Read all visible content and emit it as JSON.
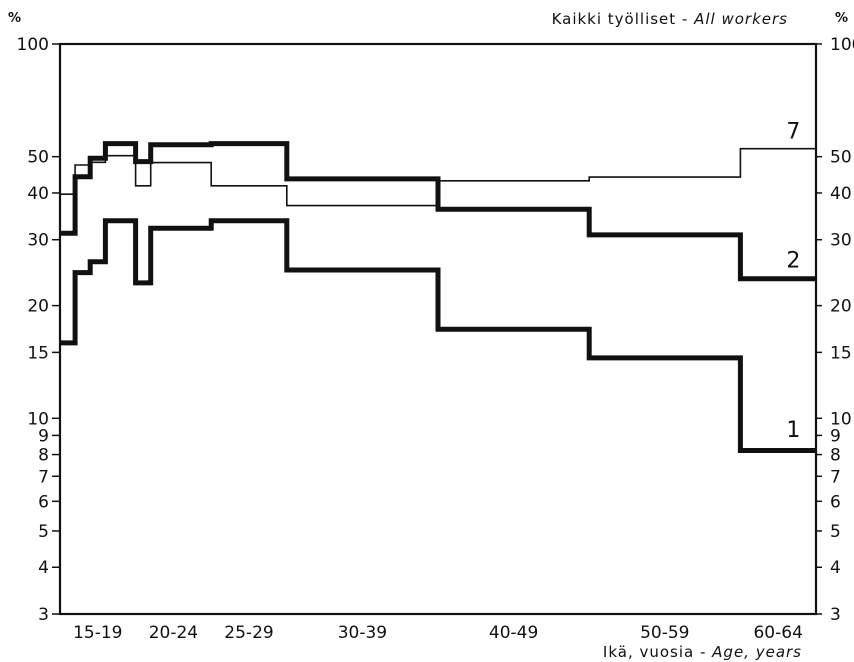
{
  "chart_data": {
    "type": "line",
    "title_prefix": "Kaikki työlliset - ",
    "title_italic": "All workers",
    "xlabel_prefix": "Ikä, vuosia - ",
    "xlabel_italic": "Age, years",
    "ylabel_left": "%",
    "ylabel_right": "%",
    "y_scale": "log",
    "ylim": [
      3,
      100
    ],
    "xlim": [
      15,
      65
    ],
    "grid": false,
    "yticks_left": [
      "3",
      "4",
      "5",
      "6",
      "7",
      "8",
      "9",
      "10",
      "15",
      "20",
      "30",
      "40",
      "50",
      "100"
    ],
    "yticks_right": [
      "3",
      "4",
      "5",
      "6",
      "7",
      "8",
      "9",
      "10",
      "15",
      "20",
      "30",
      "40",
      "50",
      "100"
    ],
    "ytick_values": [
      3,
      4,
      5,
      6,
      7,
      8,
      9,
      10,
      15,
      20,
      30,
      40,
      50,
      100
    ],
    "x_categories": [
      {
        "label": "15-19",
        "center": 17.5
      },
      {
        "label": "20-24",
        "center": 22.5
      },
      {
        "label": "25-29",
        "center": 27.5
      },
      {
        "label": "30-39",
        "center": 35
      },
      {
        "label": "40-49",
        "center": 45
      },
      {
        "label": "50-59",
        "center": 55
      },
      {
        "label": "60-64",
        "center": 62.5
      }
    ],
    "series": [
      {
        "name": "7",
        "style": "thin",
        "label_at": {
          "x": 63.5,
          "y": 56
        },
        "steps": [
          {
            "x0": 15.0,
            "x1": 16.0,
            "y": 39.7
          },
          {
            "x0": 16.0,
            "x1": 17.0,
            "y": 47.5
          },
          {
            "x0": 17.0,
            "x1": 18.0,
            "y": 48.3
          },
          {
            "x0": 18.0,
            "x1": 20.0,
            "y": 50.3
          },
          {
            "x0": 20.0,
            "x1": 21.0,
            "y": 41.8
          },
          {
            "x0": 21.0,
            "x1": 25.0,
            "y": 48.2
          },
          {
            "x0": 25.0,
            "x1": 30.0,
            "y": 41.8
          },
          {
            "x0": 30.0,
            "x1": 40.0,
            "y": 37.0
          },
          {
            "x0": 40.0,
            "x1": 50.0,
            "y": 43.1
          },
          {
            "x0": 50.0,
            "x1": 60.0,
            "y": 44.1
          },
          {
            "x0": 60.0,
            "x1": 65.0,
            "y": 52.5
          }
        ]
      },
      {
        "name": "2",
        "style": "thick",
        "label_at": {
          "x": 63.5,
          "y": 25.3
        },
        "steps": [
          {
            "x0": 15.0,
            "x1": 16.0,
            "y": 31.2
          },
          {
            "x0": 16.0,
            "x1": 17.0,
            "y": 44.2
          },
          {
            "x0": 17.0,
            "x1": 18.0,
            "y": 49.5
          },
          {
            "x0": 18.0,
            "x1": 20.0,
            "y": 54.2
          },
          {
            "x0": 20.0,
            "x1": 21.0,
            "y": 48.5
          },
          {
            "x0": 21.0,
            "x1": 25.0,
            "y": 53.8
          },
          {
            "x0": 25.0,
            "x1": 30.0,
            "y": 54.2
          },
          {
            "x0": 30.0,
            "x1": 40.0,
            "y": 43.6
          },
          {
            "x0": 40.0,
            "x1": 50.0,
            "y": 36.2
          },
          {
            "x0": 50.0,
            "x1": 60.0,
            "y": 30.9
          },
          {
            "x0": 60.0,
            "x1": 65.0,
            "y": 23.6
          }
        ]
      },
      {
        "name": "1",
        "style": "thick",
        "label_at": {
          "x": 63.5,
          "y": 8.9
        },
        "steps": [
          {
            "x0": 15.0,
            "x1": 16.0,
            "y": 15.9
          },
          {
            "x0": 16.0,
            "x1": 17.0,
            "y": 24.5
          },
          {
            "x0": 17.0,
            "x1": 18.0,
            "y": 26.2
          },
          {
            "x0": 18.0,
            "x1": 20.0,
            "y": 33.7
          },
          {
            "x0": 20.0,
            "x1": 21.0,
            "y": 23.0
          },
          {
            "x0": 21.0,
            "x1": 25.0,
            "y": 32.2
          },
          {
            "x0": 25.0,
            "x1": 30.0,
            "y": 33.7
          },
          {
            "x0": 30.0,
            "x1": 40.0,
            "y": 24.9
          },
          {
            "x0": 40.0,
            "x1": 50.0,
            "y": 17.3
          },
          {
            "x0": 50.0,
            "x1": 60.0,
            "y": 14.5
          },
          {
            "x0": 60.0,
            "x1": 65.0,
            "y": 8.2
          }
        ]
      }
    ]
  }
}
